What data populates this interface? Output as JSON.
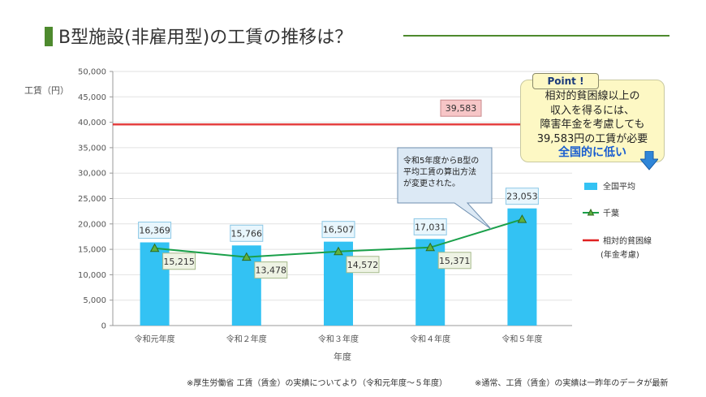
{
  "page": {
    "title": "B型施設(非雇用型)の工賃の推移は？",
    "footnote_left": "※厚生労働省 工賃（賃金）の実績についてより（令和元年度～５年度）",
    "footnote_right": "※通常、工賃（賃金）の実績は一昨年のデータが最新"
  },
  "point": {
    "badge": "Point !",
    "lines": [
      "相対的貧困線以上の",
      "収入を得るには、",
      "障害年金を考慮しても",
      "39,583円の工賃が必要"
    ],
    "emphasis": "全国的に低い"
  },
  "callout": {
    "lines": [
      "令和5年度からB型の",
      "平均工賃の算出方法",
      "が変更された。"
    ]
  },
  "colors": {
    "bar": "#33c2f3",
    "line": "#1aa04a",
    "marker": "#5fb140",
    "poverty_line": "#e02020",
    "title_accent": "#4e8a2e"
  },
  "chart_data": {
    "type": "bar",
    "categories": [
      "令和元年度",
      "令和２年度",
      "令和３年度",
      "令和４年度",
      "令和５年度"
    ],
    "series": [
      {
        "name": "全国平均",
        "kind": "bar",
        "values": [
          16369,
          15766,
          16507,
          17031,
          23053
        ],
        "labels": [
          "16,369",
          "15,766",
          "16,507",
          "17,031",
          "23,053"
        ]
      },
      {
        "name": "千葉",
        "kind": "line",
        "values": [
          15215,
          13478,
          14572,
          15371,
          20900
        ],
        "labels": [
          "15,215",
          "13,478",
          "14,572",
          "15,371",
          ""
        ]
      }
    ],
    "reference_line": {
      "name": "相対的貧困線",
      "sub": "(年金考慮)",
      "value": 39583,
      "label": "39,583"
    },
    "ylabel": "工賃（円）",
    "xlabel": "年度",
    "ylim": [
      0,
      50000
    ],
    "yticks": [
      0,
      5000,
      10000,
      15000,
      20000,
      25000,
      30000,
      35000,
      40000,
      45000,
      50000
    ],
    "ytick_labels": [
      "0",
      "5,000",
      "10,000",
      "15,000",
      "20,000",
      "25,000",
      "30,000",
      "35,000",
      "40,000",
      "45,000",
      "50,000"
    ],
    "grid": true,
    "legend": "right"
  }
}
